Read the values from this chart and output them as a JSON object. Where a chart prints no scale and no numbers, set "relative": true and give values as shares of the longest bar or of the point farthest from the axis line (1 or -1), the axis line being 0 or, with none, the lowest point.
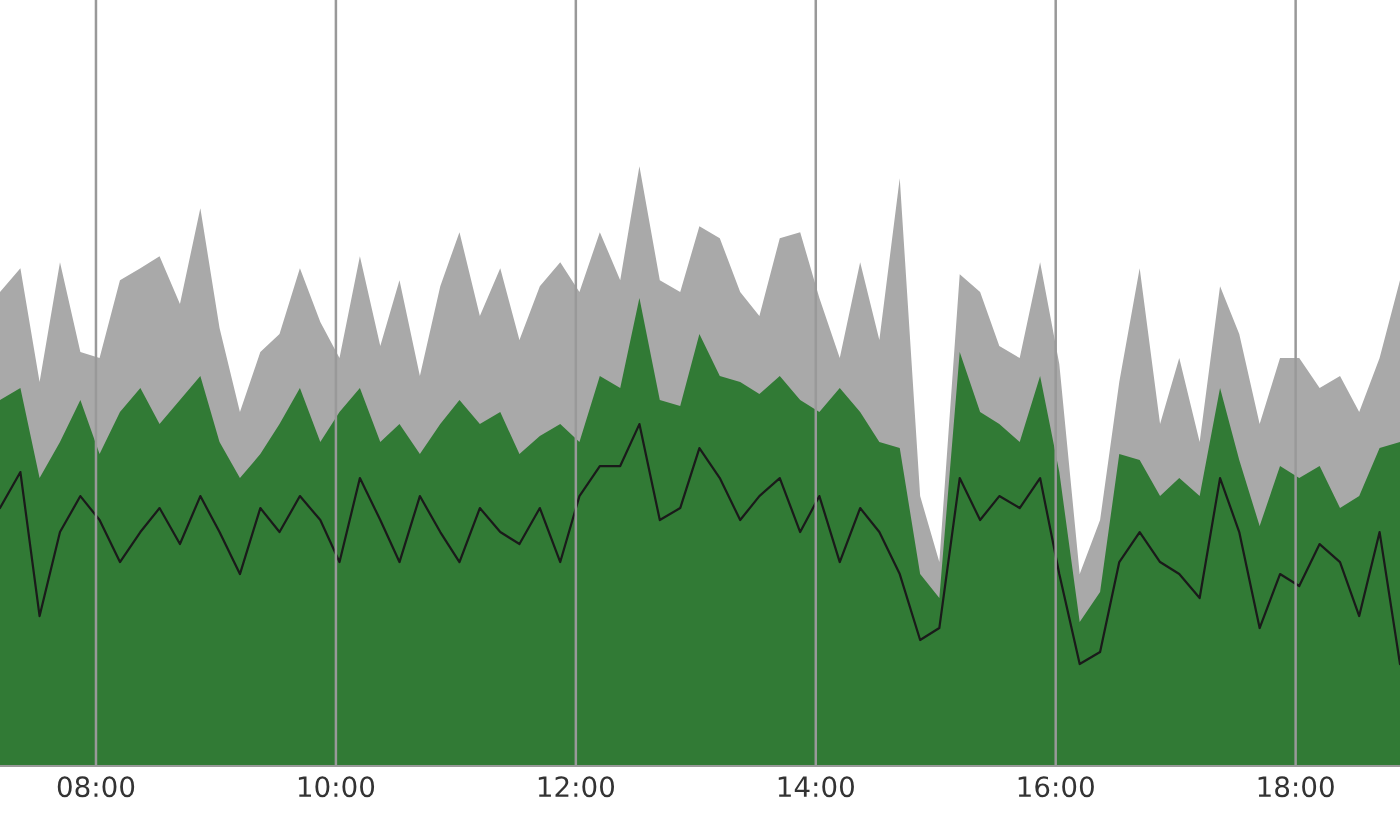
{
  "chart_data": {
    "type": "area",
    "relative": true,
    "grid": "x",
    "tick_labels": "x",
    "legend": false,
    "x": [
      7.2,
      7.37,
      7.53,
      7.7,
      7.87,
      8.03,
      8.2,
      8.37,
      8.53,
      8.7,
      8.87,
      9.03,
      9.2,
      9.37,
      9.53,
      9.7,
      9.87,
      10.03,
      10.2,
      10.37,
      10.53,
      10.7,
      10.87,
      11.03,
      11.2,
      11.37,
      11.53,
      11.7,
      11.87,
      12.03,
      12.2,
      12.37,
      12.53,
      12.7,
      12.87,
      13.03,
      13.2,
      13.37,
      13.53,
      13.7,
      13.87,
      14.03,
      14.2,
      14.37,
      14.53,
      14.7,
      14.87,
      15.03,
      15.2,
      15.37,
      15.53,
      15.7,
      15.87,
      16.03,
      16.2,
      16.37,
      16.53,
      16.7,
      16.87,
      17.03,
      17.2,
      17.37,
      17.53,
      17.7,
      17.87,
      18.03,
      18.2,
      18.37,
      18.53,
      18.7,
      18.87
    ],
    "xlim": [
      7.2,
      18.87
    ],
    "xticks": [
      {
        "value": 8,
        "label": "08:00"
      },
      {
        "value": 10,
        "label": "10:00"
      },
      {
        "value": 12,
        "label": "12:00"
      },
      {
        "value": 14,
        "label": "14:00"
      },
      {
        "value": 16,
        "label": "16:00"
      },
      {
        "value": 18,
        "label": "18:00"
      }
    ],
    "series": [
      {
        "color": "#a9a9a9",
        "values": [
          0.79,
          0.83,
          0.64,
          0.84,
          0.69,
          0.68,
          0.81,
          0.83,
          0.85,
          0.77,
          0.93,
          0.73,
          0.59,
          0.69,
          0.72,
          0.83,
          0.74,
          0.68,
          0.85,
          0.7,
          0.81,
          0.65,
          0.8,
          0.89,
          0.75,
          0.83,
          0.71,
          0.8,
          0.84,
          0.79,
          0.89,
          0.81,
          1.0,
          0.81,
          0.79,
          0.9,
          0.88,
          0.79,
          0.75,
          0.88,
          0.89,
          0.78,
          0.68,
          0.84,
          0.71,
          0.98,
          0.45,
          0.34,
          0.82,
          0.79,
          0.7,
          0.68,
          0.84,
          0.67,
          0.32,
          0.41,
          0.64,
          0.83,
          0.57,
          0.68,
          0.54,
          0.8,
          0.72,
          0.57,
          0.68,
          0.68,
          0.63,
          0.65,
          0.59,
          0.68,
          0.81
        ]
      },
      {
        "color": "#317a35",
        "values": [
          0.61,
          0.63,
          0.48,
          0.54,
          0.61,
          0.52,
          0.59,
          0.63,
          0.57,
          0.61,
          0.65,
          0.54,
          0.48,
          0.52,
          0.57,
          0.63,
          0.54,
          0.59,
          0.63,
          0.54,
          0.57,
          0.52,
          0.57,
          0.61,
          0.57,
          0.59,
          0.52,
          0.55,
          0.57,
          0.54,
          0.65,
          0.63,
          0.78,
          0.61,
          0.6,
          0.72,
          0.65,
          0.64,
          0.62,
          0.65,
          0.61,
          0.59,
          0.63,
          0.59,
          0.54,
          0.53,
          0.32,
          0.28,
          0.69,
          0.59,
          0.57,
          0.54,
          0.65,
          0.49,
          0.24,
          0.29,
          0.52,
          0.51,
          0.45,
          0.48,
          0.45,
          0.63,
          0.51,
          0.4,
          0.5,
          0.48,
          0.5,
          0.43,
          0.45,
          0.53,
          0.54
        ]
      },
      {
        "type": "line",
        "color": "#1a1a1a",
        "values": [
          0.43,
          0.49,
          0.25,
          0.39,
          0.45,
          0.41,
          0.34,
          0.39,
          0.43,
          0.37,
          0.45,
          0.39,
          0.32,
          0.43,
          0.39,
          0.45,
          0.41,
          0.34,
          0.48,
          0.41,
          0.34,
          0.45,
          0.39,
          0.34,
          0.43,
          0.39,
          0.37,
          0.43,
          0.34,
          0.45,
          0.5,
          0.5,
          0.57,
          0.41,
          0.43,
          0.53,
          0.48,
          0.41,
          0.45,
          0.48,
          0.39,
          0.45,
          0.34,
          0.43,
          0.39,
          0.32,
          0.21,
          0.23,
          0.48,
          0.41,
          0.45,
          0.43,
          0.48,
          0.32,
          0.17,
          0.19,
          0.34,
          0.39,
          0.34,
          0.32,
          0.28,
          0.48,
          0.39,
          0.23,
          0.32,
          0.3,
          0.37,
          0.34,
          0.25,
          0.39,
          0.17
        ]
      }
    ]
  }
}
